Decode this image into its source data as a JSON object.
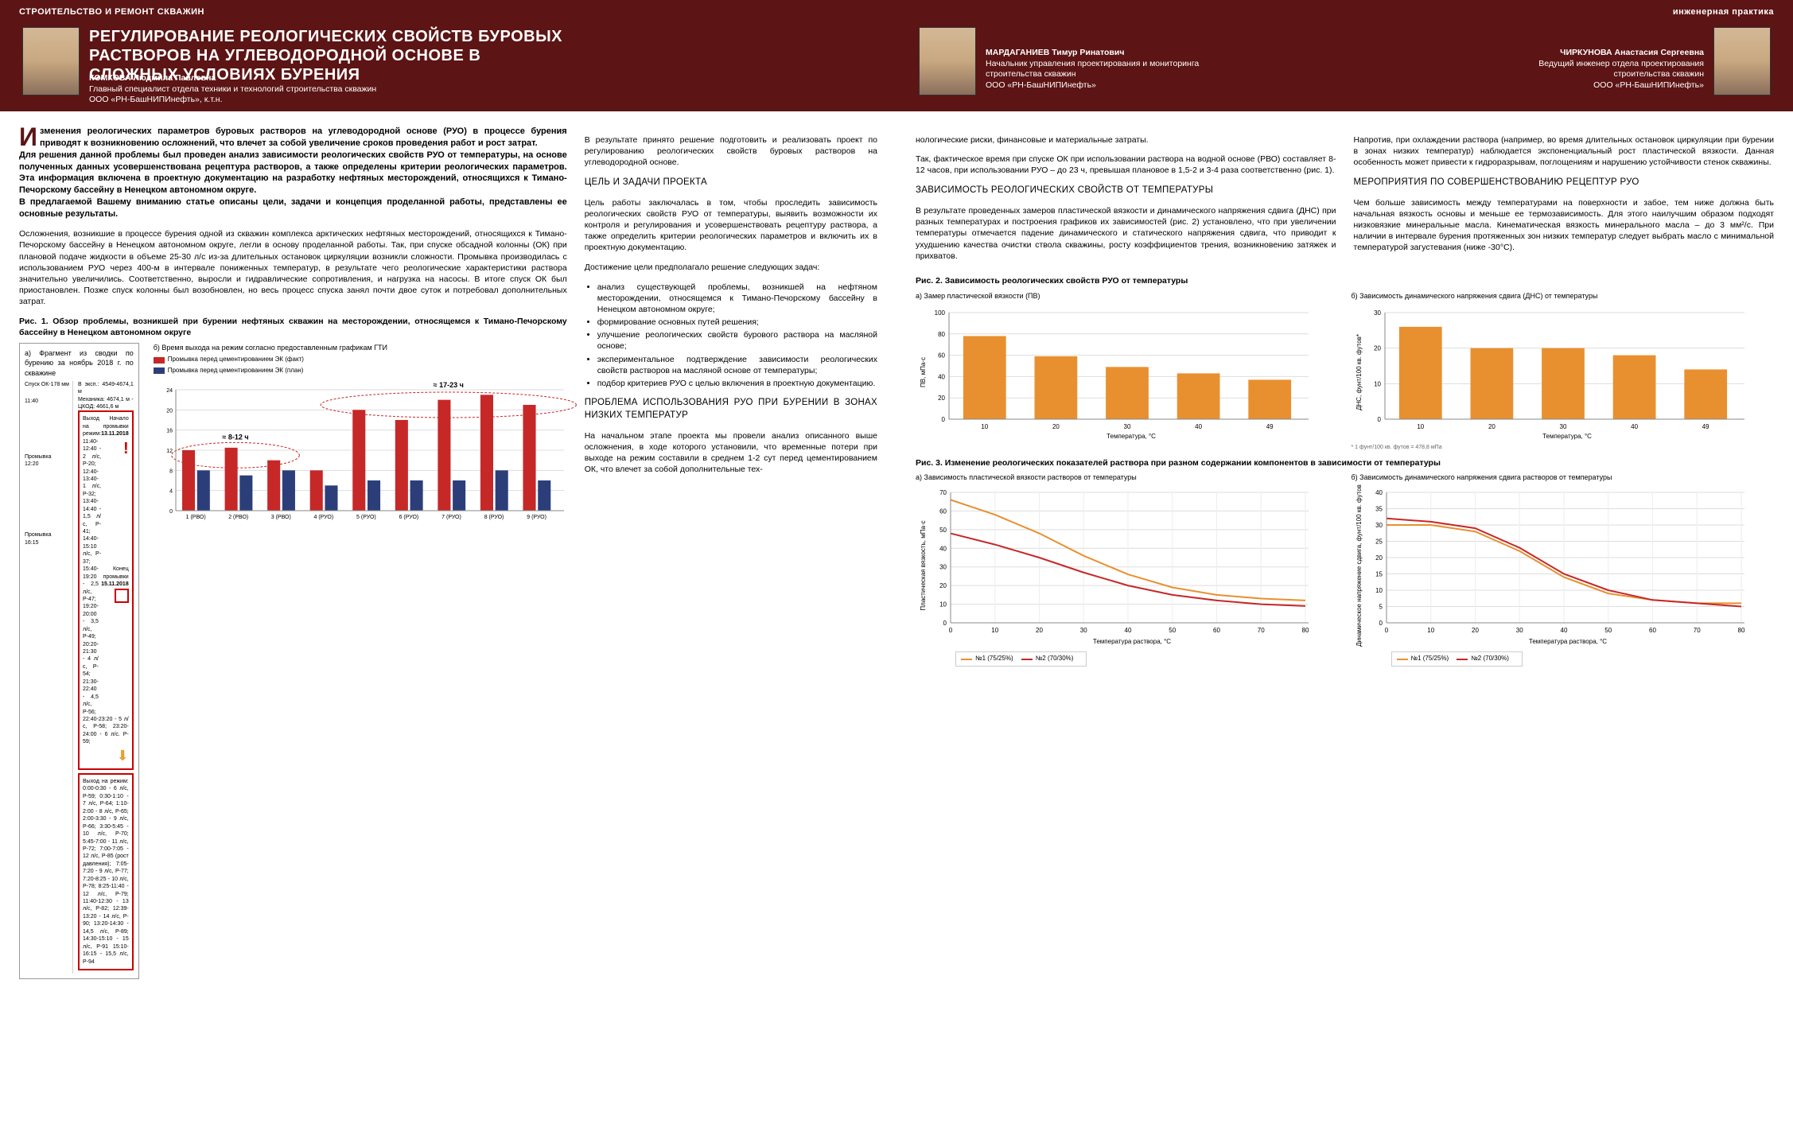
{
  "hdr": {
    "p1": "СТРОИТЕЛЬСТВО И РЕМОНТ СКВАЖИН",
    "p2": "инженерная практика"
  },
  "title": "РЕГУЛИРОВАНИЕ РЕОЛОГИЧЕСКИХ СВОЙСТВ БУРОВЫХ РАСТВОРОВ НА УГЛЕВОДОРОДНОЙ ОСНОВЕ В СЛОЖНЫХ УСЛОВИЯХ БУРЕНИЯ",
  "authors": {
    "a1": {
      "name": "КОМКОВА Людмила Павловна",
      "role": "Главный специалист отдела техники и технологий строительства скважин",
      "org": "ООО «РН-БашНИПИнефть», к.т.н."
    },
    "a2": {
      "name": "МАРДАГАНИЕВ Тимур Ринатович",
      "role": "Начальник управления проектирования и мониторинга строительства скважин",
      "org": "ООО «РН-БашНИПИнефть»"
    },
    "a3": {
      "name": "ЧИРКУНОВА Анастасия Сергеевна",
      "role": "Ведущий инженер отдела проектирования строительства скважин",
      "org": "ООО «РН-БашНИПИнефть»"
    }
  },
  "lead": "Изменения реологических параметров буровых растворов на углеводородной основе (РУО) в процессе бурения приводят к возникновению осложнений, что влечет за собой увеличение сроков проведения работ и рост затрат.\nДля решения данной проблемы был проведен анализ зависимости реологических свойств РУО от температуры, на основе полученных данных усовершенствована рецептура растворов, а также определены критерии реологических параметров. Эта информация включена в проектную документацию на разработку нефтяных месторождений, относящихся к Тимано-Печорскому бассейну в Ненецком автономном округе.\nВ предлагаемой Вашему вниманию статье описаны цели, задачи и концепция проделанной работы, представлены ее основные результаты.",
  "p": {
    "c1a": "Осложнения, возникшие в процессе бурения одной из скважин комплекса арктических нефтяных месторождений, относящихся к Тимано-Печорскому бассейну в Ненецком автономном округе, легли в основу проделанной работы. Так, при спуске обсадной колонны (ОК) при плановой подаче жидкости в объеме 25-30 л/с из-за длительных остановок циркуляции возникли сложности. Промывка производилась с использованием РУО через 400-м в интервале пониженных температур, в результате чего реологические характеристики раствора значительно увеличились. Соответственно, выросли и гидравлические сопротивления, и нагрузка на насосы. В итоге спуск ОК был приостановлен. Позже спуск колонны был возобновлен, но весь процесс спуска занял почти двое суток и потребовал дополнительных затрат.",
    "c2a": "В результате принято решение подготовить и реализовать проект по регулированию реологических свойств буровых растворов на углеводородной основе.",
    "h_goals": "ЦЕЛЬ И ЗАДАЧИ ПРОЕКТА",
    "c2b": "Цель работы заключалась в том, чтобы проследить зависимость реологических свойств РУО от температуры, выявить возможности их контроля и регулирования и усовершенствовать рецептуру раствора, а также определить критерии реологических параметров и включить их в проектную документацию.",
    "c2c": "Достижение цели предполагало решение следующих задач:",
    "tasks": [
      "анализ существующей проблемы, возникшей на нефтяном месторождении, относящемся к Тимано-Печорскому бассейну в Ненецком автономном округе;",
      "формирование основных путей решения;",
      "улучшение реологических свойств бурового раствора на масляной основе;",
      "экспериментальное подтверждение зависимости реологических свойств растворов на масляной основе от температуры;",
      "подбор критериев РУО с целью включения в проектную документацию."
    ],
    "h_prob": "ПРОБЛЕМА ИСПОЛЬЗОВАНИЯ РУО ПРИ БУРЕНИИ В ЗОНАХ НИЗКИХ ТЕМПЕРАТУР",
    "c2d": "На начальном этапе проекта мы провели анализ описанного выше осложнения, в ходе которого установили, что временные потери при выходе на режим составили в среднем 1-2 сут перед цементированием ОК, что влечет за собой дополнительные тех-",
    "c3a": "нологические риски, финансовые и материальные затраты.",
    "c3b": "Так, фактическое время при спуске ОК при использовании раствора на водной основе (РВО) составляет 8-12 часов, при использовании РУО – до 23 ч, превышая плановое в 1,5-2 и 3-4 раза соответственно (рис. 1).",
    "h_dep": "ЗАВИСИМОСТЬ РЕОЛОГИЧЕСКИХ СВОЙСТВ ОТ ТЕМПЕРАТУРЫ",
    "c3c": "В результате проведенных замеров пластической вязкости и динамического напряжения сдвига (ДНС) при разных температурах и построения графиков их зависимостей (рис. 2) установлено, что при увеличении температуры отмечается падение динамического и статического напряжения сдвига, что приводит к ухудшению качества очистки ствола скважины, росту коэффициентов трения, возникновению затяжек и прихватов.",
    "c4a": "Напротив, при охлаждении раствора (например, во время длительных остановок циркуляции при бурении в зонах низких температур) наблюдается экспоненциальный рост пластической вязкости. Данная особенность может привести к гидроразрывам, поглощениям и нарушению устойчивости стенок скважины.",
    "h_mer": "МЕРОПРИЯТИЯ ПО СОВЕРШЕНСТВОВАНИЮ РЕЦЕПТУР РУО",
    "c4b": "Чем больше зависимость между температурами на поверхности и забое, тем ниже должна быть начальная вязкость основы и меньше ее термозависимость. Для этого наилучшим образом подходят низковязкие минеральные масла. Кинематическая вязкость минерального масла – до 3 мм²/с. При наличии в интервале бурения протяженных зон низких температур следует выбрать масло с минимальной температурой загустевания (ниже -30°С)."
  },
  "fig1": {
    "cap": "Рис. 1. Обзор проблемы, возникшей при бурении нефтяных скважин на месторождении, относящемся к Тимано-Печорскому бассейну в Ненецком автономном округе",
    "sub_a": "а) Фрагмент из сводки по бурению за ноябрь 2018 г. по скважине",
    "sub_b": "б) Время выхода на режим согласно предоставленным графикам ГТИ",
    "left": {
      "header": "Спуск ОК-178 мм",
      "t1": "11:40",
      "well": "В эксп.: 4549-4674,1 м",
      "depth": "Механика: 4674,1 м  - ЦКОД: 4661,6 м",
      "r1": "Выход на режим: 11:40-12:40 - 2 л/с, P-20; 12:40-13:40-1 л/с, P-32; 13:40-14:40 - 1,5 л/с, P-41; 14:40-15:10 л/с, P-37;",
      "start": "Начало промывки",
      "d1": "13.11.2018",
      "r2": "15:40-19:20 - 2,5 л/с, P-47; 19:20-20:00 - 3,5 л/с, P-49; 20:20-21:30 - 4 л/с, P-54; 21:30-22:40 - 4,5 л/с, P-56;",
      "end": "Конец промывки",
      "d2": "15.11.2018",
      "t2": "12:20",
      "lab": "Промывка",
      "r3": "22:40-23:20 - 5 л/с, P-58; 23:20-24:00 - 6 л/с. P-59;",
      "r4": "Выход на режим: 0:00-0:30 - 6 л/с, P-59; 0:30-1:10 - 7 л/с, P-64; 1:10-2:00 - 8 л/с, P-65; 2:00-3:30 - 9 л/с, P-66; 3:30-5:45 - 10 л/с, P-70; 5:45-7:00 - 11 л/с, P-72; 7:00-7:05 - 12 л/с, P-85 (рост давления); 7:05-7:20 - 9 л/с, P-77; 7:20-8:25 - 10 л/с, P-78; 8:25-11:40 - 12 л/с, P-79; 11:40-12:30 - 13 л/с, P-82; 12:39-13:20 - 14 л/с, P-90; 13:20-14:30 - 14,5 л/с, P-89; 14:30-15:10 - 15 л/с, P-91 15:10-16:15 - 15,5 л/с, P-94",
      "t3": "16:15",
      "lab2": "Промывка"
    },
    "right": {
      "legend": [
        "Промывка перед цементированием ЭК (факт)",
        "Промывка перед цементированием ЭК (план)"
      ],
      "ann1": "≈ 8-12 ч",
      "ann2": "≈ 17-23 ч",
      "colors": [
        "#c62828",
        "#2c3e7a"
      ],
      "cats": [
        "1 (РВО)",
        "2 (РВО)",
        "3 (РВО)",
        "4 (РУО)",
        "5 (РУО)",
        "6 (РУО)",
        "7 (РУО)",
        "8 (РУО)",
        "9 (РУО)"
      ],
      "fact": [
        12,
        12.5,
        10,
        8,
        20,
        18,
        22,
        23,
        21
      ],
      "plan": [
        8,
        7,
        8,
        5,
        6,
        6,
        6,
        8,
        6
      ],
      "ymax": 24
    }
  },
  "fig2": {
    "cap": "Рис. 2. Зависимость реологических свойств РУО от температуры",
    "a": {
      "sub": "а) Замер пластической вязкости (ПВ)",
      "ylabel": "ПВ, мПа·с",
      "xlabel": "Температура, °С",
      "cats": [
        "10",
        "20",
        "30",
        "40",
        "49"
      ],
      "vals": [
        78,
        59,
        49,
        43,
        37
      ],
      "color": "#e89030",
      "ymax": 100,
      "ystep": 20
    },
    "b": {
      "sub": "б) Зависимость динамического напряжения сдвига (ДНС) от температуры",
      "ylabel": "ДНС, фунт/100 кв. футов*",
      "xlabel": "Температура, °С",
      "note": "* 1 фунт/100 кв. футов = 478,8 мПа",
      "cats": [
        "10",
        "20",
        "30",
        "40",
        "49"
      ],
      "vals": [
        26,
        20,
        20,
        18,
        14
      ],
      "color": "#e89030",
      "ymax": 30,
      "ystep": 10
    }
  },
  "fig3": {
    "cap": "Рис. 3. Изменение реологических показателей раствора при разном содержании компонентов в зависимости от температуры",
    "a": {
      "sub": "а) Зависимость пластической вязкости растворов от температуры",
      "ylabel": "Пластическая вязкость, мПа·с",
      "xlabel": "Температура раствора, °С",
      "xmax": 80,
      "ymax": 70,
      "ystep": 10,
      "series": [
        {
          "name": "№1 (75/25%)",
          "color": "#e89030",
          "pts": [
            [
              0,
              66
            ],
            [
              10,
              58
            ],
            [
              20,
              48
            ],
            [
              30,
              36
            ],
            [
              40,
              26
            ],
            [
              50,
              19
            ],
            [
              60,
              15
            ],
            [
              70,
              13
            ],
            [
              80,
              12
            ]
          ]
        },
        {
          "name": "№2 (70/30%)",
          "color": "#c62828",
          "pts": [
            [
              0,
              48
            ],
            [
              10,
              42
            ],
            [
              20,
              35
            ],
            [
              30,
              27
            ],
            [
              40,
              20
            ],
            [
              50,
              15
            ],
            [
              60,
              12
            ],
            [
              70,
              10
            ],
            [
              80,
              9
            ]
          ]
        }
      ]
    },
    "b": {
      "sub": "б) Зависимость динамического напряжения сдвига растворов от температуры",
      "ylabel": "Динамическое напряжение сдвига, фунт/100 кв. футов",
      "xlabel": "Температура раствора, °С",
      "xmax": 80,
      "ymax": 40,
      "ystep": 5,
      "series": [
        {
          "name": "№1 (75/25%)",
          "color": "#e89030",
          "pts": [
            [
              0,
              30
            ],
            [
              10,
              30
            ],
            [
              20,
              28
            ],
            [
              30,
              22
            ],
            [
              40,
              14
            ],
            [
              50,
              9
            ],
            [
              60,
              7
            ],
            [
              70,
              6
            ],
            [
              80,
              6
            ]
          ]
        },
        {
          "name": "№2 (70/30%)",
          "color": "#c62828",
          "pts": [
            [
              0,
              32
            ],
            [
              10,
              31
            ],
            [
              20,
              29
            ],
            [
              30,
              23
            ],
            [
              40,
              15
            ],
            [
              50,
              10
            ],
            [
              60,
              7
            ],
            [
              70,
              6
            ],
            [
              80,
              5
            ]
          ]
        }
      ]
    }
  }
}
